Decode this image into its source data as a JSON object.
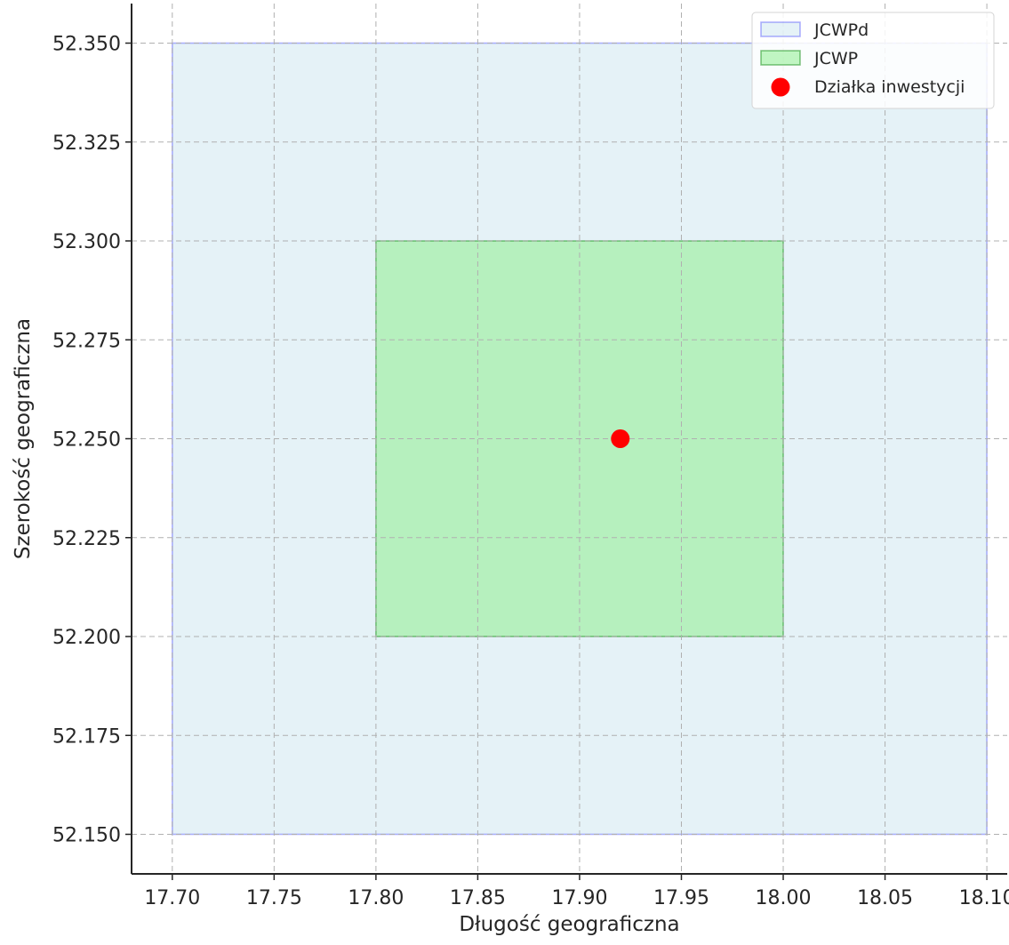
{
  "chart_data": {
    "type": "scatter",
    "title": "",
    "xlabel": "Długość geograficzna",
    "ylabel": "Szerokość geograficzna",
    "xlim": [
      17.68,
      18.11
    ],
    "ylim": [
      52.14,
      52.36
    ],
    "x_ticks": [
      17.7,
      17.75,
      17.8,
      17.85,
      17.9,
      17.95,
      18.0,
      18.05,
      18.1
    ],
    "y_ticks": [
      52.15,
      52.175,
      52.2,
      52.225,
      52.25,
      52.275,
      52.3,
      52.325,
      52.35
    ],
    "x_tick_decimals": 2,
    "y_tick_decimals": 3,
    "grid": true,
    "legend_position": "top-right",
    "rectangles": [
      {
        "name": "JCWPd",
        "x_min": 17.7,
        "x_max": 18.1,
        "y_min": 52.15,
        "y_max": 52.35,
        "fill": "#add8e6",
        "fill_opacity": 0.32,
        "edge": "#0000ff",
        "edge_opacity": 0.3
      },
      {
        "name": "JCWP",
        "x_min": 17.8,
        "x_max": 18.0,
        "y_min": 52.2,
        "y_max": 52.3,
        "fill": "#90ee90",
        "fill_opacity": 0.55,
        "edge": "#008000",
        "edge_opacity": 0.45
      }
    ],
    "points": [
      {
        "name": "Działka inwestycji",
        "x": 17.92,
        "y": 52.25,
        "color": "#ff0000"
      }
    ]
  }
}
